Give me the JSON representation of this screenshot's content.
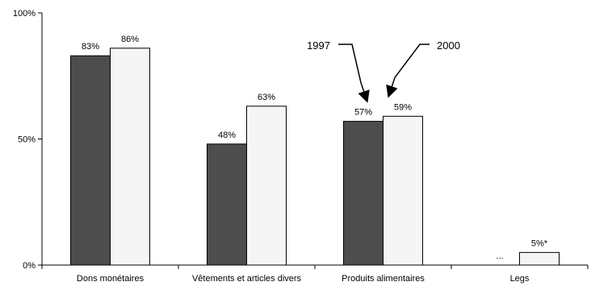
{
  "chart_data": {
    "type": "bar",
    "categories": [
      "Dons monétaires",
      "Vêtements et articles divers",
      "Produits alimentaires",
      "Legs"
    ],
    "series": [
      {
        "name": "1997",
        "values": [
          83,
          48,
          57,
          null
        ],
        "labels": [
          "83%",
          "48%",
          "57%",
          "..."
        ],
        "color": "#4d4d4d"
      },
      {
        "name": "2000",
        "values": [
          86,
          63,
          59,
          5
        ],
        "labels": [
          "86%",
          "63%",
          "59%",
          "5%*"
        ],
        "color": "#f5f5f5"
      }
    ],
    "ylim": [
      0,
      100
    ],
    "yticks": [
      0,
      50,
      100
    ],
    "ytick_labels": [
      "0%",
      "50%",
      "100%"
    ],
    "grid": false,
    "legend": "arrow callouts above Produits alimentaires bars",
    "title": "",
    "xlabel": "",
    "ylabel": ""
  }
}
